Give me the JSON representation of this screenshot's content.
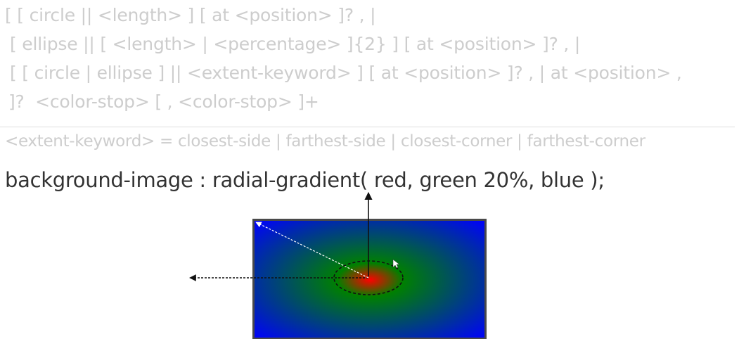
{
  "syntax": {
    "line1": "[ [ circle || <length> ] [ at <position> ]? , |",
    "line2": "[ ellipse || [ <length> | <percentage> ]{2} ] [ at <position> ]? , |",
    "line3": "[ [ circle | ellipse ] || <extent-keyword> ] [ at <position> ]? , | at <position> ,",
    "line4": "]?  <color-stop> [ , <color-stop> ]+"
  },
  "extent_keyword": {
    "definition": "<extent-keyword> = closest-side | farthest-side | closest-corner | farthest-corner"
  },
  "example": {
    "code": "background-image : radial-gradient( red, green 20%, blue );"
  },
  "diagram": {
    "gradient_stops": [
      "red",
      "green 20%",
      "blue"
    ],
    "colors": {
      "red": "#ff0000",
      "green": "#008000",
      "blue": "#0000ff",
      "frame": "#4a4a4a",
      "annotation": "#111111",
      "corner_ray": "#ffffff"
    }
  }
}
